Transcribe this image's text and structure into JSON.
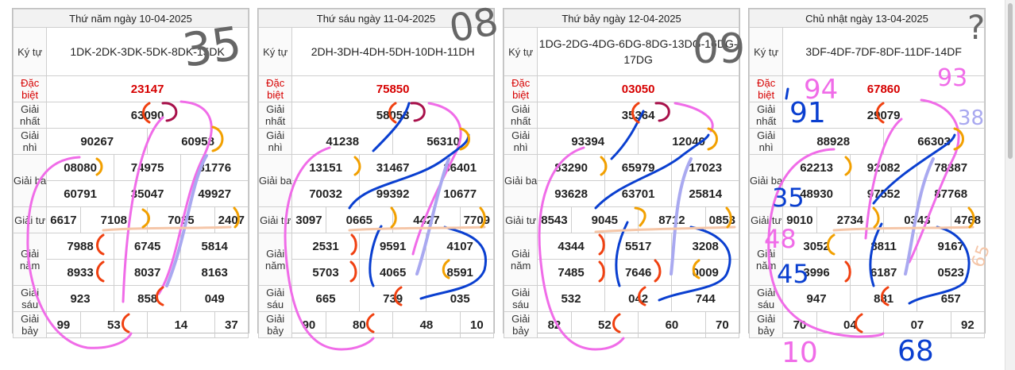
{
  "labels": {
    "ky_tu": "Ký tự",
    "dac_biet": "Đặc biệt",
    "giai_nhat": "Giải nhất",
    "giai_nhi": "Giải nhì",
    "giai_ba": "Giải ba",
    "giai_tu": "Giải tư",
    "giai_nam": "Giải năm",
    "giai_sau": "Giải sáu",
    "giai_bay": "Giải bảy"
  },
  "panels": [
    {
      "title": "Thứ năm ngày 10-04-2025",
      "code": "1DK-2DK-3DK-5DK-8DK-15DK",
      "db": "23147",
      "g1": "63090",
      "g2": [
        "90267",
        "60958"
      ],
      "g3": [
        "08080",
        "74975",
        "81776",
        "60791",
        "35047",
        "49927"
      ],
      "g4": [
        "6617",
        "7108",
        "7035",
        "2407"
      ],
      "g5": [
        "7988",
        "6745",
        "5814",
        "8933",
        "8037",
        "8163"
      ],
      "g6": [
        "923",
        "858",
        "049"
      ],
      "g7": [
        "99",
        "53",
        "14",
        "37"
      ]
    },
    {
      "title": "Thứ sáu ngày 11-04-2025",
      "code": "2DH-3DH-4DH-5DH-10DH-11DH",
      "db": "75850",
      "g1": "58053",
      "g2": [
        "41238",
        "56310"
      ],
      "g3": [
        "13151",
        "31467",
        "36401",
        "70032",
        "99392",
        "10677"
      ],
      "g4": [
        "3097",
        "0665",
        "4427",
        "7709"
      ],
      "g5": [
        "2531",
        "9591",
        "4107",
        "5703",
        "4065",
        "8591"
      ],
      "g6": [
        "665",
        "739",
        "035"
      ],
      "g7": [
        "90",
        "80",
        "48",
        "10"
      ]
    },
    {
      "title": "Thứ bảy ngày 12-04-2025",
      "code": "1DG-2DG-4DG-6DG-8DG-13DG-16DG-17DG",
      "db": "03050",
      "g1": "35364",
      "g2": [
        "93394",
        "12040"
      ],
      "g3": [
        "83290",
        "65979",
        "17023",
        "93628",
        "63701",
        "25814"
      ],
      "g4": [
        "8543",
        "9045",
        "8712",
        "0853"
      ],
      "g5": [
        "4344",
        "5517",
        "3208",
        "7485",
        "7646",
        "0009"
      ],
      "g6": [
        "532",
        "042",
        "744"
      ],
      "g7": [
        "82",
        "52",
        "60",
        "70"
      ]
    },
    {
      "title": "Chủ nhật ngày 13-04-2025",
      "code": "3DF-4DF-7DF-8DF-11DF-14DF",
      "db": "67860",
      "g1": "29079",
      "g2": [
        "88928",
        "66303"
      ],
      "g3": [
        "62213",
        "92082",
        "78387",
        "48930",
        "97552",
        "87768"
      ],
      "g4": [
        "9010",
        "2734",
        "0343",
        "4768"
      ],
      "g5": [
        "3052",
        "8811",
        "9167",
        "3996",
        "6187",
        "0523"
      ],
      "g6": [
        "947",
        "881",
        "657"
      ],
      "g7": [
        "70",
        "04",
        "07",
        "92"
      ]
    }
  ],
  "handwriting": {
    "p1_big": "35",
    "p2_big": "08",
    "p3_big": "09",
    "p4_q": "?",
    "p4_94": "94",
    "p4_93": "93",
    "p4_38": "38",
    "p4_91": "91",
    "p4_35": "35",
    "p4_48": "48",
    "p4_45": "45",
    "p4_65": "65",
    "p4_10": "10",
    "p4_68": "68"
  },
  "colors": {
    "red": "#d60000",
    "pink": "#f06ce8",
    "blue": "#0a3fd0",
    "lavender": "#a9a9f0",
    "orange": "#f2a000",
    "red_orange": "#f04010",
    "maroon": "#a8104a",
    "peach": "#f5c6a8",
    "gray_ink": "#666666"
  }
}
